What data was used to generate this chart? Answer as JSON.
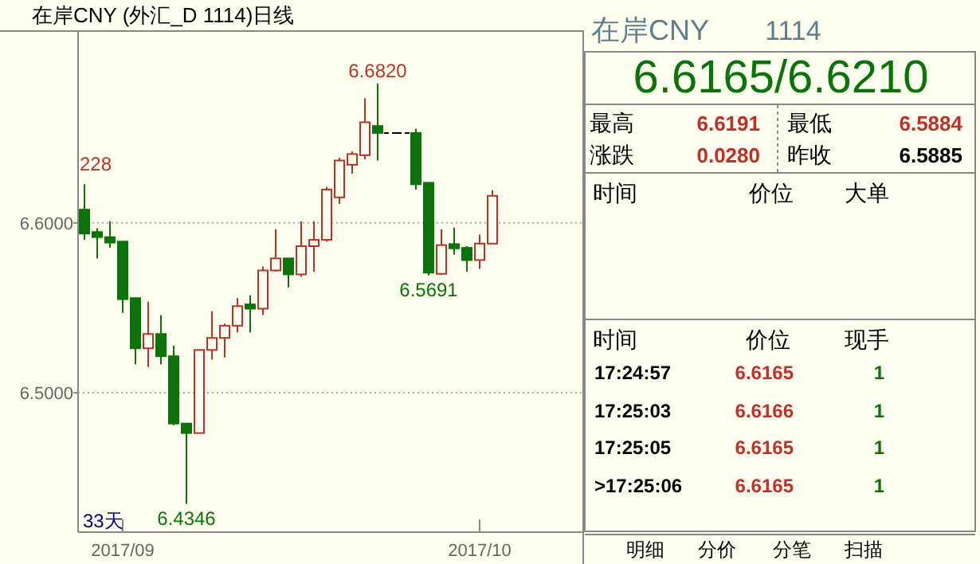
{
  "chart_data": [
    {
      "type": "candlestick",
      "title": "在岸CNY (外汇_D 1114)日线",
      "categories": [
        null,
        null,
        null,
        "2017/09",
        null,
        null,
        null,
        null,
        null,
        null,
        null,
        null,
        null,
        null,
        null,
        null,
        null,
        null,
        null,
        null,
        null,
        null,
        null,
        null,
        null,
        null,
        null,
        null,
        null,
        null,
        null,
        "2017/10",
        null
      ],
      "ohlc": [
        [
          6.6078,
          6.6228,
          6.59,
          6.5937
        ],
        [
          6.5946,
          6.5968,
          6.579,
          6.5916
        ],
        [
          6.5916,
          6.601,
          6.5853,
          6.5884
        ],
        [
          6.589,
          6.589,
          6.547,
          6.5551
        ],
        [
          6.5557,
          6.5557,
          6.5168,
          6.5262
        ],
        [
          6.5262,
          6.5536,
          6.5152,
          6.5346
        ],
        [
          6.5346,
          6.5458,
          6.5168,
          6.5215
        ],
        [
          6.5215,
          6.5277,
          6.4809,
          6.4819
        ],
        [
          6.4819,
          6.4819,
          6.4346,
          6.4763
        ],
        [
          6.4763,
          6.5252,
          6.4763,
          6.5252
        ],
        [
          6.5252,
          6.548,
          6.5196,
          6.5323
        ],
        [
          6.5323,
          6.5407,
          6.5208,
          6.5395
        ],
        [
          6.5395,
          6.5557,
          6.5355,
          6.551
        ],
        [
          6.552,
          6.5573,
          6.5355,
          6.5495
        ],
        [
          6.5495,
          6.5744,
          6.5458,
          6.572
        ],
        [
          6.572,
          6.5963,
          6.5713,
          6.5791
        ],
        [
          6.5791,
          6.5791,
          6.562,
          6.5697
        ],
        [
          6.5697,
          6.601,
          6.5682,
          6.5863
        ],
        [
          6.5863,
          6.601,
          6.5713,
          6.59
        ],
        [
          6.59,
          6.6212,
          6.589,
          6.6196
        ],
        [
          6.615,
          6.6383,
          6.6112,
          6.6367
        ],
        [
          6.6342,
          6.6421,
          6.629,
          6.6405
        ],
        [
          6.6398,
          6.6732,
          6.6374,
          6.6592
        ],
        [
          6.657,
          6.682,
          6.6367,
          6.6529
        ],
        [
          6.6529,
          6.6529,
          6.6529,
          6.6529
        ],
        [
          6.6529,
          6.6529,
          6.6529,
          6.6529
        ],
        [
          6.6529,
          6.6554,
          6.6196,
          6.6227
        ],
        [
          6.6236,
          6.6236,
          6.5691,
          6.5707
        ],
        [
          6.57,
          6.5963,
          6.5695,
          6.5869
        ],
        [
          6.5875,
          6.5972,
          6.5813,
          6.585
        ],
        [
          6.5853,
          6.5863,
          6.5713,
          6.5781
        ],
        [
          6.5781,
          6.5931,
          6.5729,
          6.5878
        ],
        [
          6.5878,
          6.6191,
          6.5878,
          6.6159
        ]
      ],
      "ylim": [
        6.418,
        6.7124
      ],
      "yticks": [
        {
          "value": 6.6,
          "label": "6.6000"
        },
        {
          "value": 6.5,
          "label": "6.5000"
        }
      ],
      "grid": "y",
      "annotations": [
        "228",
        {
          "text": "6.6820",
          "y": 6.682
        },
        {
          "text": "6.4346",
          "y": 6.4346
        },
        {
          "text": "6.5691",
          "y": 6.5691
        },
        "33天"
      ]
    },
    {
      "type": "other",
      "title": "在岸CNY",
      "subtitle": "1114",
      "annotations": [
        "6.6165/6.6210",
        "最高",
        "6.6191",
        "最低",
        "6.5884",
        "涨跌",
        "0.0280",
        "昨收",
        "6.5885",
        "时间",
        "价位",
        "大单",
        "时间",
        "价位",
        "现手",
        "17:24:57",
        "6.6165",
        "1",
        "17:25:03",
        "6.6166",
        "1",
        "17:25:05",
        "6.6165",
        "1",
        ">17:25:06",
        "6.6165",
        "1",
        "明细",
        "分价",
        "分笔",
        "扫描"
      ]
    }
  ]
}
